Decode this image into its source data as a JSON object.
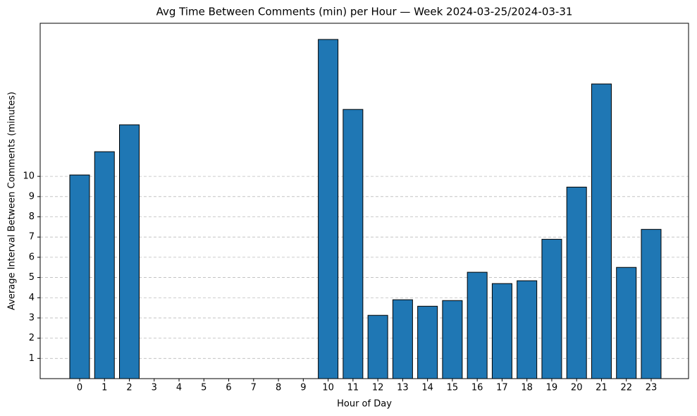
{
  "chart_data": {
    "type": "bar",
    "title": "Avg Time Between Comments (min) per Hour — Week 2024-03-25/2024-03-31",
    "x_label": "Hour of Day",
    "y_label": "Average Interval Between Comments (minutes)",
    "categories": [
      "0",
      "1",
      "2",
      "3",
      "4",
      "5",
      "6",
      "7",
      "8",
      "9",
      "10",
      "11",
      "12",
      "13",
      "14",
      "15",
      "16",
      "17",
      "18",
      "19",
      "20",
      "21",
      "22",
      "23"
    ],
    "values": [
      10.07,
      11.22,
      12.55,
      0,
      0,
      0,
      0,
      0,
      0,
      0,
      16.77,
      13.31,
      3.13,
      3.9,
      3.58,
      3.86,
      5.26,
      4.7,
      4.84,
      6.89,
      9.47,
      14.57,
      5.5,
      7.38
    ],
    "color": "#1f77b4",
    "ylim": [
      0,
      17.57
    ],
    "yticks": [
      1,
      2,
      3,
      4,
      5,
      6,
      7,
      8,
      9,
      10
    ],
    "grid": true
  }
}
